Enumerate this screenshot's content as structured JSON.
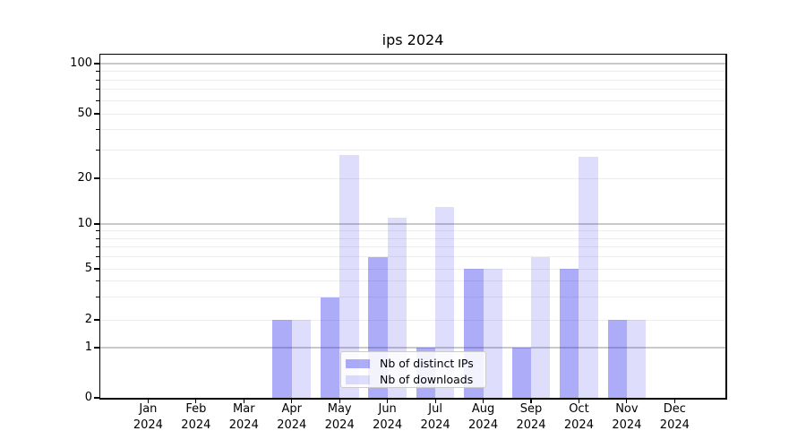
{
  "title": "ips 2024",
  "colors": {
    "bar_ips": "rgba(47,47,239,0.40)",
    "bar_downloads": "rgba(47,47,239,0.16)",
    "bar_ips_hex": "#acacf9",
    "bar_downloads_hex": "#dedefc",
    "spine": "#000000",
    "grid_major": "#c9c9c9",
    "grid_minor": "#ededed",
    "text": "#000000",
    "legend_border": "#cccccc",
    "legend_bg": "rgba(255,255,255,0.85)"
  },
  "legend": {
    "items": [
      {
        "label": "Nb of distinct IPs",
        "color_key": "bar_ips"
      },
      {
        "label": "Nb of downloads",
        "color_key": "bar_downloads"
      }
    ]
  },
  "y_axis": {
    "major_ticks": [
      {
        "label": "100",
        "value": 100
      },
      {
        "label": "50",
        "value": 50
      },
      {
        "label": "20",
        "value": 20
      },
      {
        "label": "10",
        "value": 10
      },
      {
        "label": "5",
        "value": 5
      },
      {
        "label": "2",
        "value": 2
      },
      {
        "label": "1",
        "value": 1
      },
      {
        "label": "0",
        "value": 0
      }
    ],
    "minor_tick_values": [
      3,
      4,
      6,
      7,
      8,
      9,
      30,
      40,
      60,
      70,
      80,
      90
    ],
    "grid_major_values": [
      1,
      10,
      100
    ],
    "grid_minor_values": [
      2,
      3,
      4,
      5,
      6,
      7,
      8,
      9,
      20,
      30,
      40,
      50,
      60,
      70,
      80,
      90
    ]
  },
  "x_axis": {
    "months": [
      {
        "line1": "Jan",
        "line2": "2024"
      },
      {
        "line1": "Feb",
        "line2": "2024"
      },
      {
        "line1": "Mar",
        "line2": "2024"
      },
      {
        "line1": "Apr",
        "line2": "2024"
      },
      {
        "line1": "May",
        "line2": "2024"
      },
      {
        "line1": "Jun",
        "line2": "2024"
      },
      {
        "line1": "Jul",
        "line2": "2024"
      },
      {
        "line1": "Aug",
        "line2": "2024"
      },
      {
        "line1": "Sep",
        "line2": "2024"
      },
      {
        "line1": "Oct",
        "line2": "2024"
      },
      {
        "line1": "Nov",
        "line2": "2024"
      },
      {
        "line1": "Dec",
        "line2": "2024"
      }
    ]
  },
  "chart_data": {
    "type": "bar",
    "title": "ips 2024",
    "categories": [
      "Jan 2024",
      "Feb 2024",
      "Mar 2024",
      "Apr 2024",
      "May 2024",
      "Jun 2024",
      "Jul 2024",
      "Aug 2024",
      "Sep 2024",
      "Oct 2024",
      "Nov 2024",
      "Dec 2024"
    ],
    "series": [
      {
        "name": "Nb of distinct IPs",
        "key": "bar_ips",
        "values": [
          0,
          0,
          0,
          2,
          3,
          6,
          1,
          5,
          1,
          5,
          2,
          0
        ]
      },
      {
        "name": "Nb of downloads",
        "key": "bar_downloads",
        "values": [
          0,
          0,
          0,
          2,
          28,
          11,
          13,
          5,
          6,
          27,
          2,
          0
        ]
      }
    ],
    "y_scale": "symlog-like",
    "y_tick_values": [
      0,
      1,
      2,
      5,
      10,
      20,
      50,
      100
    ],
    "ylim": [
      0,
      130
    ],
    "grid": true,
    "legend_position": "lower-center"
  }
}
